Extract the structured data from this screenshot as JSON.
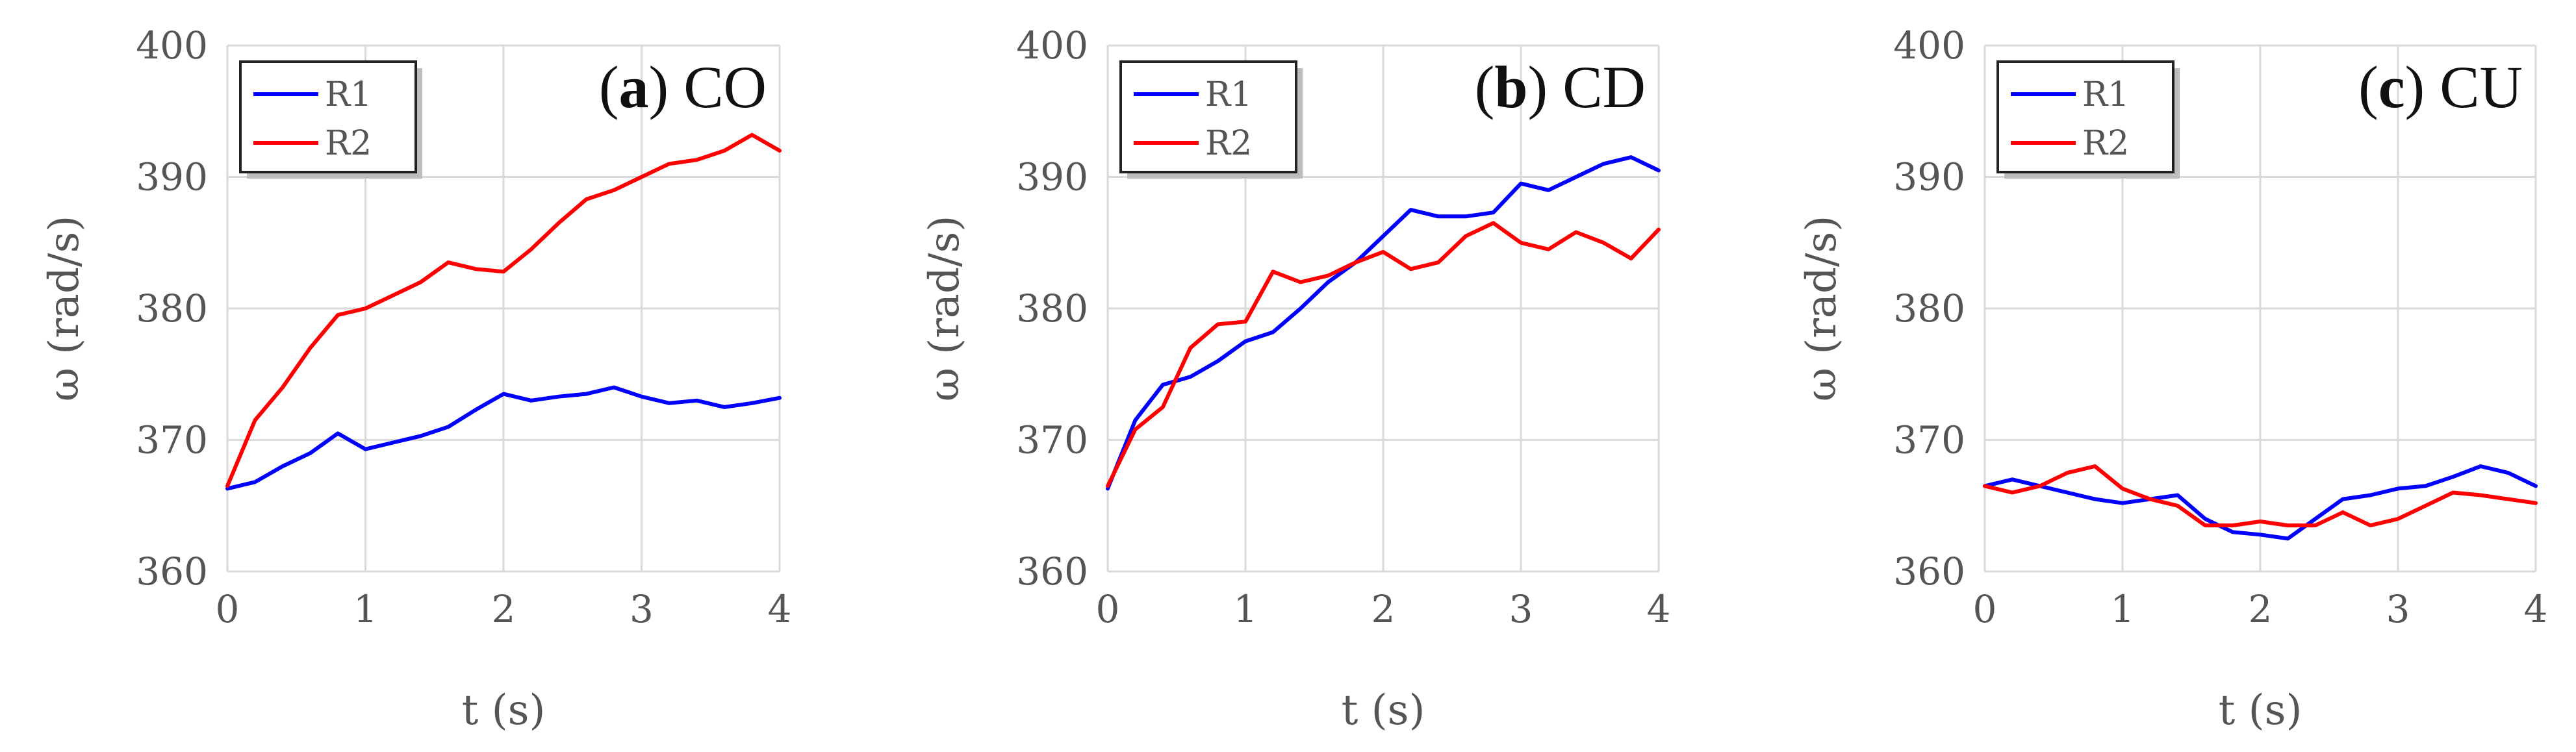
{
  "chart_data": [
    {
      "type": "line",
      "title_letter": "a",
      "title_text": "CO",
      "xlabel": "t (s)",
      "ylabel": "ω (rad/s)",
      "xlim": [
        0,
        4
      ],
      "ylim": [
        360,
        400
      ],
      "xticks": [
        "0",
        "1",
        "2",
        "3",
        "4"
      ],
      "yticks": [
        "360",
        "370",
        "380",
        "390",
        "400"
      ],
      "grid": true,
      "legend_position": "top-left",
      "series": [
        {
          "name": "R1",
          "color": "#0000ff",
          "x": [
            0,
            0.2,
            0.4,
            0.6,
            0.8,
            1.0,
            1.2,
            1.4,
            1.6,
            1.8,
            2.0,
            2.2,
            2.4,
            2.6,
            2.8,
            3.0,
            3.2,
            3.4,
            3.6,
            3.8,
            4.0
          ],
          "y": [
            366.3,
            366.8,
            368.0,
            369.0,
            370.5,
            369.3,
            369.8,
            370.3,
            371.0,
            372.3,
            373.5,
            373.0,
            373.3,
            373.5,
            374.0,
            373.3,
            372.8,
            373.0,
            372.5,
            372.8,
            373.2
          ]
        },
        {
          "name": "R2",
          "color": "#ff0000",
          "x": [
            0,
            0.2,
            0.4,
            0.6,
            0.8,
            1.0,
            1.2,
            1.4,
            1.6,
            1.8,
            2.0,
            2.2,
            2.4,
            2.6,
            2.8,
            3.0,
            3.2,
            3.4,
            3.6,
            3.8,
            4.0
          ],
          "y": [
            366.5,
            371.5,
            374.0,
            377.0,
            379.5,
            380.0,
            381.0,
            382.0,
            383.5,
            383.0,
            382.8,
            384.5,
            386.5,
            388.3,
            389.0,
            390.0,
            391.0,
            391.3,
            392.0,
            393.2,
            392.0
          ]
        }
      ]
    },
    {
      "type": "line",
      "title_letter": "b",
      "title_text": "CD",
      "xlabel": "t (s)",
      "ylabel": "ω (rad/s)",
      "xlim": [
        0,
        4
      ],
      "ylim": [
        360,
        400
      ],
      "xticks": [
        "0",
        "1",
        "2",
        "3",
        "4"
      ],
      "yticks": [
        "360",
        "370",
        "380",
        "390",
        "400"
      ],
      "grid": true,
      "legend_position": "top-left",
      "series": [
        {
          "name": "R1",
          "color": "#0000ff",
          "x": [
            0,
            0.2,
            0.4,
            0.6,
            0.8,
            1.0,
            1.2,
            1.4,
            1.6,
            1.8,
            2.0,
            2.2,
            2.4,
            2.6,
            2.8,
            3.0,
            3.2,
            3.4,
            3.6,
            3.8,
            4.0
          ],
          "y": [
            366.3,
            371.5,
            374.2,
            374.8,
            376.0,
            377.5,
            378.2,
            380.0,
            382.0,
            383.5,
            385.5,
            387.5,
            387.0,
            387.0,
            387.3,
            389.5,
            389.0,
            390.0,
            391.0,
            391.5,
            390.5
          ]
        },
        {
          "name": "R2",
          "color": "#ff0000",
          "x": [
            0,
            0.2,
            0.4,
            0.6,
            0.8,
            1.0,
            1.2,
            1.4,
            1.6,
            1.8,
            2.0,
            2.2,
            2.4,
            2.6,
            2.8,
            3.0,
            3.2,
            3.4,
            3.6,
            3.8,
            4.0
          ],
          "y": [
            366.5,
            370.8,
            372.5,
            377.0,
            378.8,
            379.0,
            382.8,
            382.0,
            382.5,
            383.5,
            384.3,
            383.0,
            383.5,
            385.5,
            386.5,
            385.0,
            384.5,
            385.8,
            385.0,
            383.8,
            386.0
          ]
        }
      ]
    },
    {
      "type": "line",
      "title_letter": "c",
      "title_text": "CU",
      "xlabel": "t (s)",
      "ylabel": "ω (rad/s)",
      "xlim": [
        0,
        4
      ],
      "ylim": [
        360,
        400
      ],
      "xticks": [
        "0",
        "1",
        "2",
        "3",
        "4"
      ],
      "yticks": [
        "360",
        "370",
        "380",
        "390",
        "400"
      ],
      "grid": true,
      "legend_position": "top-left",
      "series": [
        {
          "name": "R1",
          "color": "#0000ff",
          "x": [
            0,
            0.2,
            0.4,
            0.6,
            0.8,
            1.0,
            1.2,
            1.4,
            1.6,
            1.8,
            2.0,
            2.2,
            2.4,
            2.6,
            2.8,
            3.0,
            3.2,
            3.4,
            3.6,
            3.8,
            4.0
          ],
          "y": [
            366.5,
            367.0,
            366.5,
            366.0,
            365.5,
            365.2,
            365.5,
            365.8,
            364.0,
            363.0,
            362.8,
            362.5,
            364.0,
            365.5,
            365.8,
            366.3,
            366.5,
            367.2,
            368.0,
            367.5,
            366.5
          ]
        },
        {
          "name": "R2",
          "color": "#ff0000",
          "x": [
            0,
            0.2,
            0.4,
            0.6,
            0.8,
            1.0,
            1.2,
            1.4,
            1.6,
            1.8,
            2.0,
            2.2,
            2.4,
            2.6,
            2.8,
            3.0,
            3.2,
            3.4,
            3.6,
            3.8,
            4.0
          ],
          "y": [
            366.5,
            366.0,
            366.5,
            367.5,
            368.0,
            366.3,
            365.5,
            365.0,
            363.5,
            363.5,
            363.8,
            363.5,
            363.5,
            364.5,
            363.5,
            364.0,
            365.0,
            366.0,
            365.8,
            365.5,
            365.2
          ]
        }
      ]
    }
  ]
}
